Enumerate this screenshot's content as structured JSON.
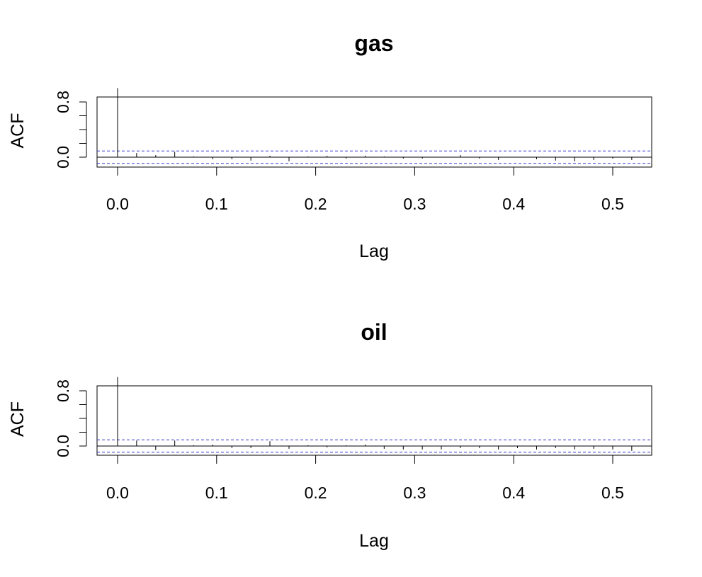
{
  "chart_data": [
    {
      "type": "bar",
      "title": "gas",
      "xlabel": "Lag",
      "ylabel": "ACF",
      "xlim": [
        -0.02,
        0.54
      ],
      "ylim": [
        -0.1,
        1.0
      ],
      "x_ticks": [
        0.0,
        0.1,
        0.2,
        0.3,
        0.4,
        0.5
      ],
      "x_tick_labels": [
        "0.0",
        "0.1",
        "0.2",
        "0.3",
        "0.4",
        "0.5"
      ],
      "y_ticks": [
        0.0,
        0.2,
        0.4,
        0.6,
        0.8
      ],
      "y_tick_labels": [
        "0.0",
        "",
        "",
        "",
        "0.8"
      ],
      "confidence_band": [
        -0.09,
        0.09
      ],
      "band_color": "#3333cc",
      "grid": false,
      "x": [
        0.0,
        0.0192,
        0.0385,
        0.0577,
        0.0769,
        0.0962,
        0.1154,
        0.1346,
        0.1538,
        0.1731,
        0.1923,
        0.2115,
        0.2308,
        0.25,
        0.2692,
        0.2885,
        0.3077,
        0.3269,
        0.3462,
        0.3654,
        0.3846,
        0.4038,
        0.4231,
        0.4423,
        0.4615,
        0.4808,
        0.5,
        0.5192
      ],
      "values": [
        1.0,
        0.06,
        0.03,
        0.08,
        0.01,
        -0.03,
        -0.03,
        -0.05,
        0.02,
        -0.06,
        0.01,
        0.02,
        -0.02,
        0.02,
        0.01,
        -0.02,
        -0.02,
        0.0,
        0.03,
        -0.02,
        -0.04,
        0.0,
        -0.03,
        -0.05,
        -0.06,
        -0.04,
        -0.02,
        -0.04
      ]
    },
    {
      "type": "bar",
      "title": "oil",
      "xlabel": "Lag",
      "ylabel": "ACF",
      "xlim": [
        -0.02,
        0.54
      ],
      "ylim": [
        -0.1,
        1.0
      ],
      "x_ticks": [
        0.0,
        0.1,
        0.2,
        0.3,
        0.4,
        0.5
      ],
      "x_tick_labels": [
        "0.0",
        "0.1",
        "0.2",
        "0.3",
        "0.4",
        "0.5"
      ],
      "y_ticks": [
        0.0,
        0.2,
        0.4,
        0.6,
        0.8
      ],
      "y_tick_labels": [
        "0.0",
        "",
        "",
        "",
        "0.8"
      ],
      "confidence_band": [
        -0.09,
        0.09
      ],
      "band_color": "#3333cc",
      "grid": false,
      "x": [
        0.0,
        0.0192,
        0.0385,
        0.0577,
        0.0769,
        0.0962,
        0.1154,
        0.1346,
        0.1538,
        0.1731,
        0.1923,
        0.2115,
        0.2308,
        0.25,
        0.2692,
        0.2885,
        0.3077,
        0.3269,
        0.3462,
        0.3654,
        0.3846,
        0.4038,
        0.4231,
        0.4423,
        0.4615,
        0.4808,
        0.5,
        0.5192
      ],
      "values": [
        1.0,
        0.08,
        -0.06,
        0.08,
        0.01,
        0.02,
        -0.03,
        -0.03,
        0.07,
        -0.04,
        0.01,
        -0.02,
        0.01,
        0.02,
        -0.04,
        -0.05,
        -0.05,
        -0.05,
        -0.03,
        -0.03,
        -0.05,
        -0.03,
        -0.05,
        -0.03,
        -0.05,
        -0.04,
        -0.05,
        -0.07
      ]
    }
  ]
}
